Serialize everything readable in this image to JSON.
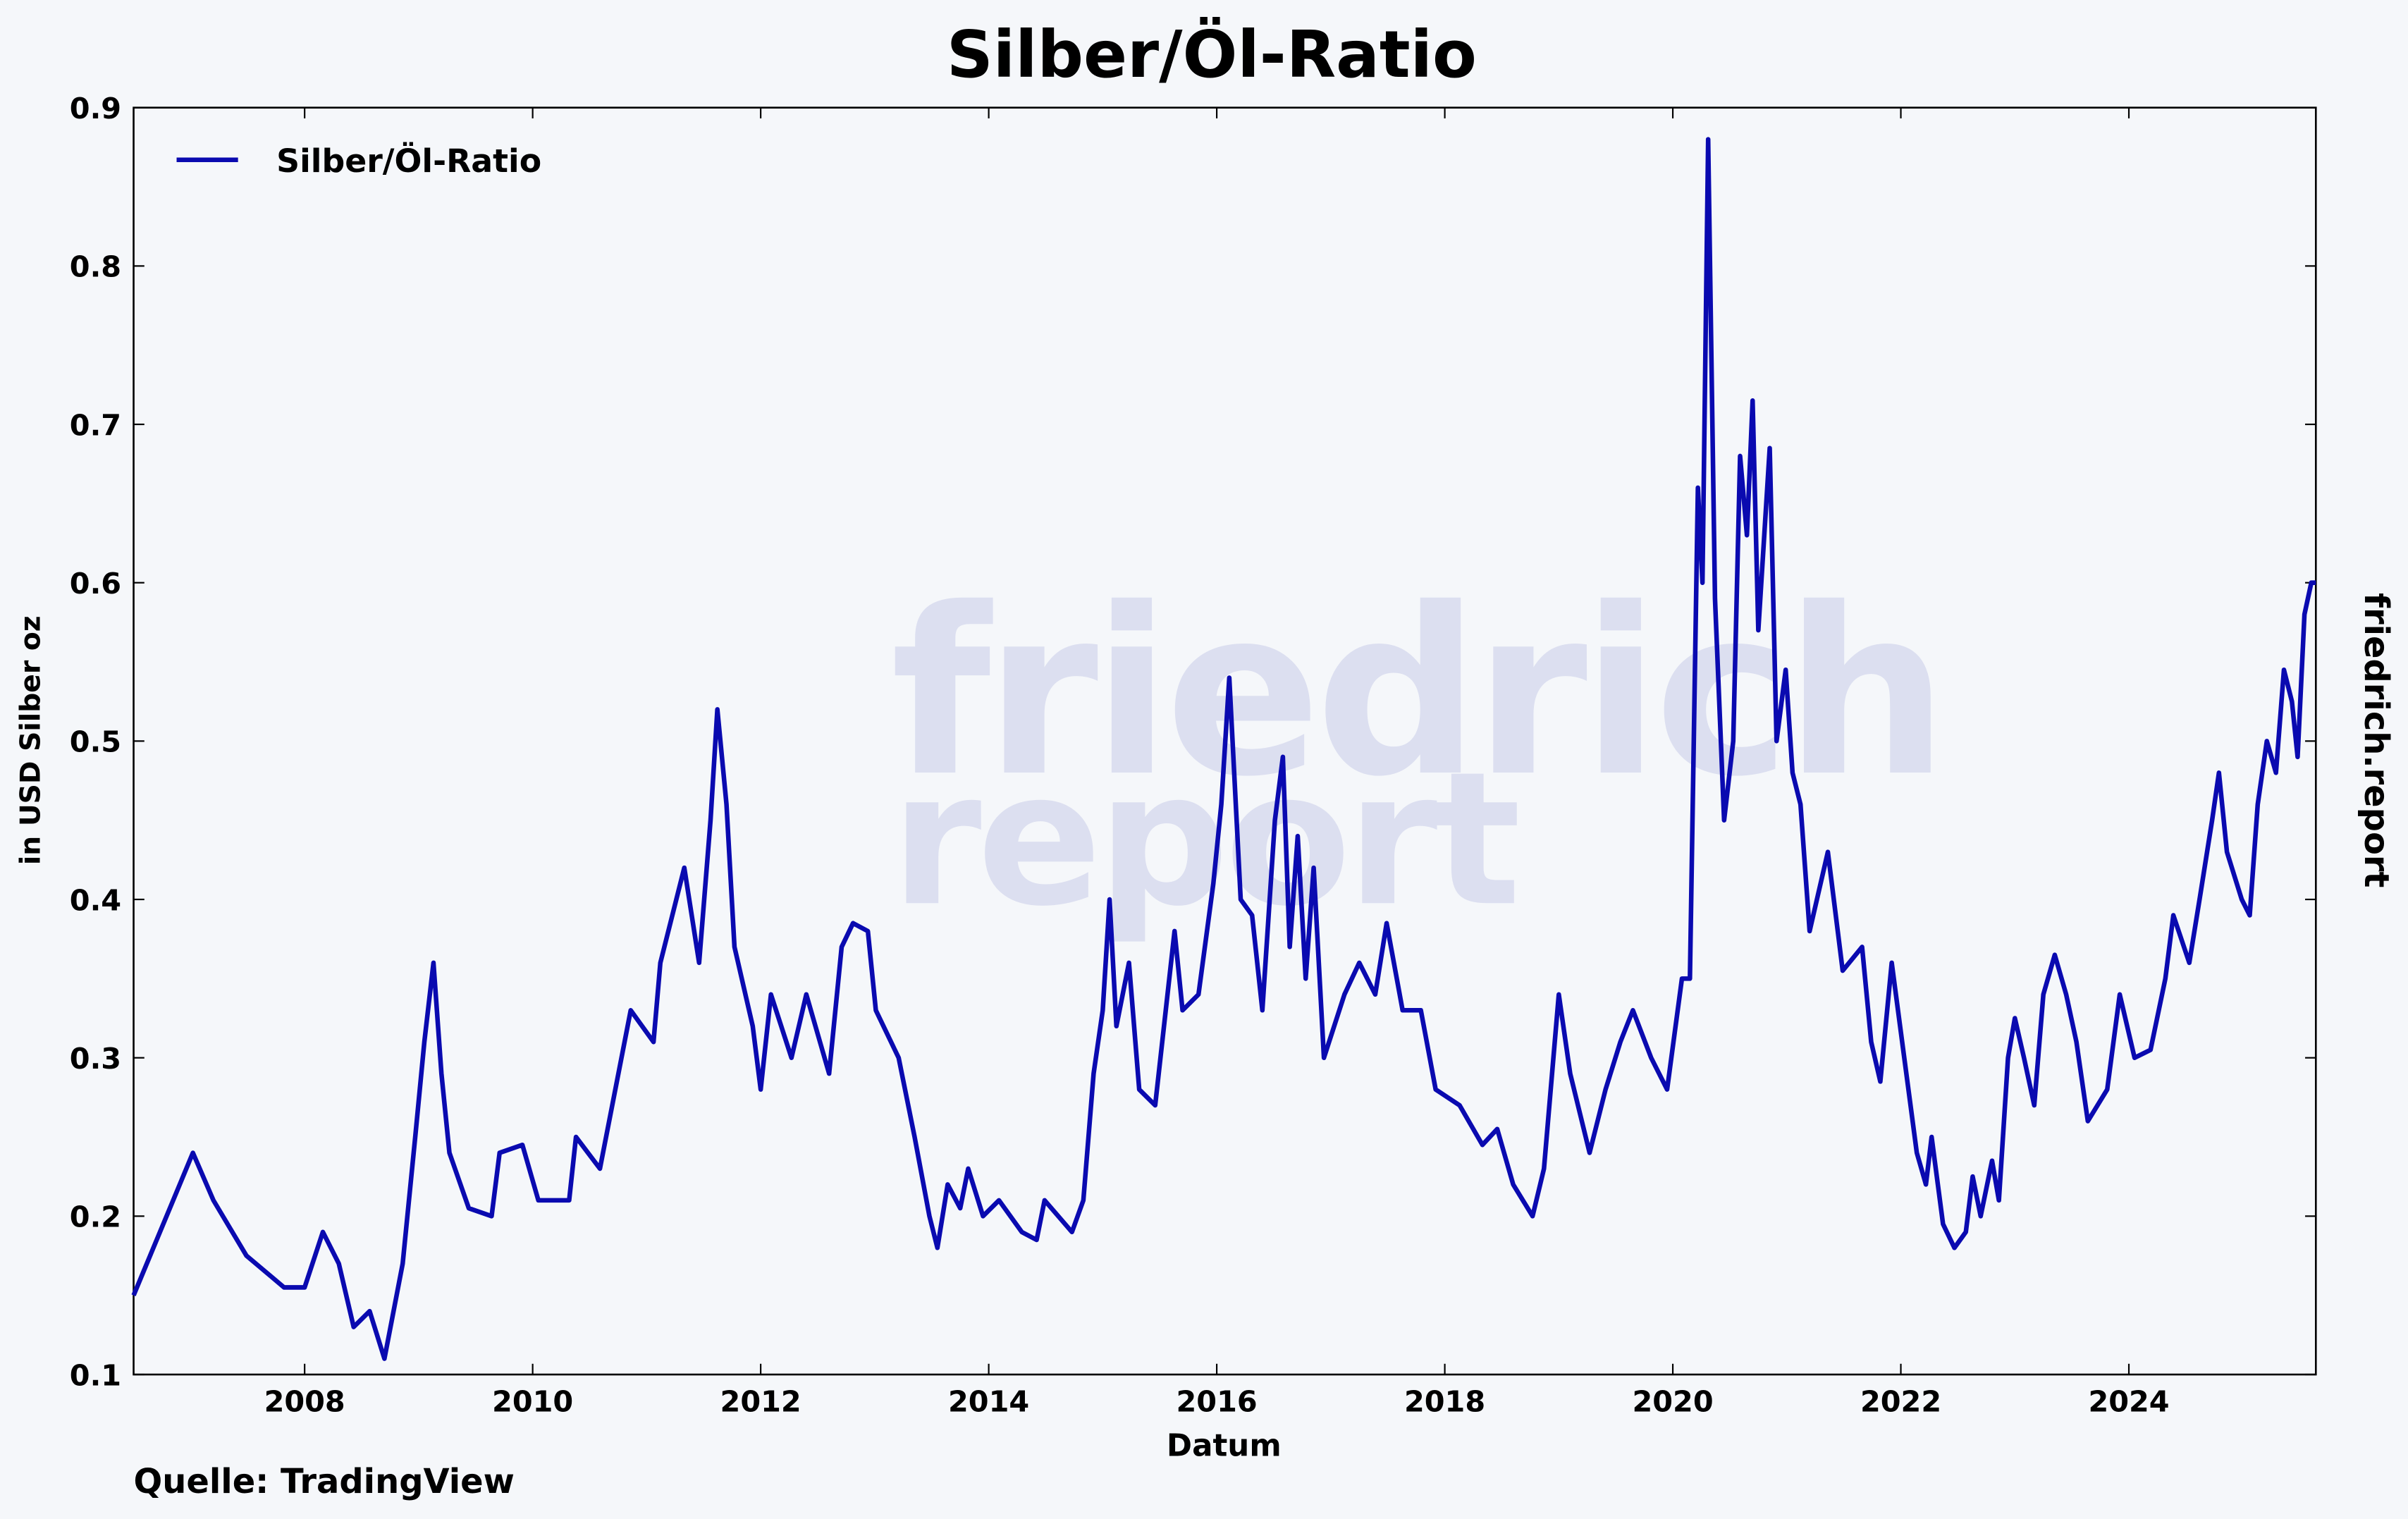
{
  "chart_data": {
    "type": "line",
    "title": "Silber/Öl-Ratio",
    "xlabel": "Datum",
    "ylabel": "in USD Silber oz",
    "source": "Quelle: TradingView",
    "side_label": "friedrich.report",
    "watermark": [
      "friedrich",
      "report"
    ],
    "legend": "upper left",
    "xlim": [
      2006.5,
      2025.64
    ],
    "ylim": [
      0.1,
      0.9
    ],
    "xticks": [
      2008,
      2010,
      2012,
      2014,
      2016,
      2018,
      2020,
      2022,
      2024
    ],
    "yticks": [
      0.1,
      0.2,
      0.3,
      0.4,
      0.5,
      0.6,
      0.7,
      0.8,
      0.9
    ],
    "x": [
      2006.5,
      2007.02,
      2007.2,
      2007.49,
      2007.82,
      2008.0,
      2008.16,
      2008.3,
      2008.43,
      2008.57,
      2008.7,
      2008.86,
      2008.97,
      2009.05,
      2009.13,
      2009.2,
      2009.27,
      2009.44,
      2009.64,
      2009.71,
      2009.91,
      2010.05,
      2010.32,
      2010.38,
      2010.59,
      2010.86,
      2011.06,
      2011.12,
      2011.33,
      2011.46,
      2011.56,
      2011.62,
      2011.7,
      2011.77,
      2011.93,
      2012.0,
      2012.09,
      2012.27,
      2012.4,
      2012.6,
      2012.71,
      2012.81,
      2012.94,
      2013.01,
      2013.21,
      2013.35,
      2013.48,
      2013.55,
      2013.64,
      2013.75,
      2013.82,
      2013.95,
      2014.09,
      2014.29,
      2014.42,
      2014.49,
      2014.73,
      2014.83,
      2014.92,
      2015.0,
      2015.06,
      2015.12,
      2015.23,
      2015.32,
      2015.46,
      2015.63,
      2015.7,
      2015.84,
      2015.97,
      2016.04,
      2016.11,
      2016.21,
      2016.31,
      2016.4,
      2016.51,
      2016.58,
      2016.64,
      2016.71,
      2016.78,
      2016.85,
      2016.94,
      2017.12,
      2017.25,
      2017.39,
      2017.49,
      2017.63,
      2017.79,
      2017.92,
      2018.13,
      2018.33,
      2018.46,
      2018.6,
      2018.77,
      2018.87,
      2019.0,
      2019.1,
      2019.27,
      2019.41,
      2019.54,
      2019.65,
      2019.81,
      2019.95,
      2020.08,
      2020.15,
      2020.22,
      2020.26,
      2020.31,
      2020.37,
      2020.45,
      2020.53,
      2020.59,
      2020.65,
      2020.7,
      2020.75,
      2020.85,
      2020.91,
      2020.99,
      2021.05,
      2021.12,
      2021.2,
      2021.36,
      2021.49,
      2021.66,
      2021.74,
      2021.82,
      2021.92,
      2022.03,
      2022.14,
      2022.22,
      2022.27,
      2022.37,
      2022.47,
      2022.57,
      2022.63,
      2022.7,
      2022.8,
      2022.86,
      2022.94,
      2023.0,
      2023.08,
      2023.17,
      2023.25,
      2023.35,
      2023.45,
      2023.54,
      2023.64,
      2023.81,
      2023.92,
      2024.05,
      2024.19,
      2024.32,
      2024.39,
      2024.53,
      2024.62,
      2024.73,
      2024.79,
      2024.86,
      2024.99,
      2025.06,
      2025.13,
      2025.21,
      2025.29,
      2025.36,
      2025.43,
      2025.48,
      2025.54,
      2025.6,
      2025.64
    ],
    "series": [
      {
        "name": "Silber/Öl-Ratio",
        "color": "#0a0ab0",
        "values": [
          0.15,
          0.24,
          0.21,
          0.175,
          0.155,
          0.155,
          0.19,
          0.17,
          0.13,
          0.14,
          0.11,
          0.17,
          0.25,
          0.31,
          0.36,
          0.29,
          0.24,
          0.205,
          0.2,
          0.24,
          0.245,
          0.21,
          0.21,
          0.25,
          0.23,
          0.33,
          0.31,
          0.36,
          0.42,
          0.36,
          0.45,
          0.52,
          0.46,
          0.37,
          0.32,
          0.28,
          0.34,
          0.3,
          0.34,
          0.29,
          0.37,
          0.385,
          0.38,
          0.33,
          0.3,
          0.25,
          0.2,
          0.18,
          0.22,
          0.205,
          0.23,
          0.2,
          0.21,
          0.19,
          0.185,
          0.21,
          0.19,
          0.21,
          0.29,
          0.33,
          0.4,
          0.32,
          0.36,
          0.28,
          0.27,
          0.38,
          0.33,
          0.34,
          0.41,
          0.46,
          0.54,
          0.4,
          0.39,
          0.33,
          0.45,
          0.49,
          0.37,
          0.44,
          0.35,
          0.42,
          0.3,
          0.34,
          0.36,
          0.34,
          0.385,
          0.33,
          0.33,
          0.28,
          0.27,
          0.245,
          0.255,
          0.22,
          0.2,
          0.23,
          0.34,
          0.29,
          0.24,
          0.28,
          0.31,
          0.33,
          0.3,
          0.28,
          0.35,
          0.35,
          0.66,
          0.6,
          0.88,
          0.59,
          0.45,
          0.5,
          0.68,
          0.63,
          0.715,
          0.57,
          0.685,
          0.5,
          0.545,
          0.48,
          0.46,
          0.38,
          0.43,
          0.355,
          0.37,
          0.31,
          0.285,
          0.36,
          0.3,
          0.24,
          0.22,
          0.25,
          0.195,
          0.18,
          0.19,
          0.225,
          0.2,
          0.235,
          0.21,
          0.3,
          0.325,
          0.3,
          0.27,
          0.34,
          0.365,
          0.34,
          0.31,
          0.26,
          0.28,
          0.34,
          0.3,
          0.305,
          0.35,
          0.39,
          0.36,
          0.4,
          0.45,
          0.48,
          0.43,
          0.4,
          0.39,
          0.46,
          0.5,
          0.48,
          0.545,
          0.525,
          0.49,
          0.58,
          0.6,
          0.6
        ]
      }
    ]
  }
}
